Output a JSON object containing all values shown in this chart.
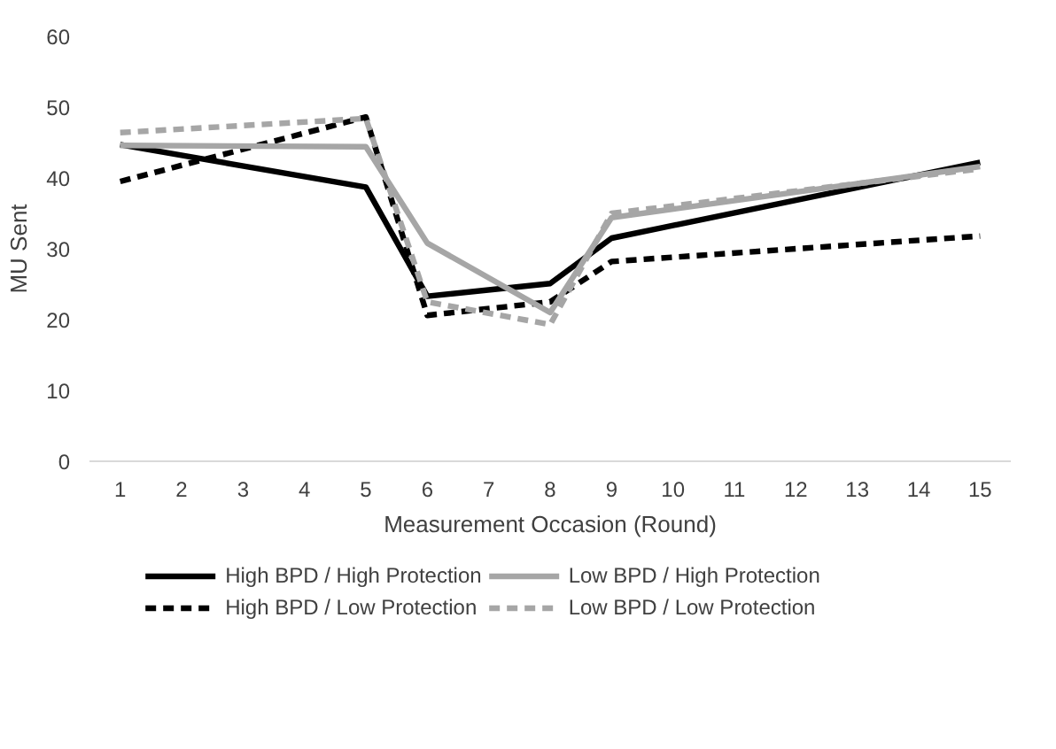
{
  "chart_data": {
    "type": "line",
    "xlabel": "Measurement Occasion (Round)",
    "ylabel": "MU Sent",
    "x": [
      1,
      5,
      6,
      8,
      9,
      15
    ],
    "xlim": [
      0.5,
      15.5
    ],
    "xticks": [
      1,
      2,
      3,
      4,
      5,
      6,
      7,
      8,
      9,
      10,
      11,
      12,
      13,
      14,
      15
    ],
    "ylim": [
      0,
      60
    ],
    "yticks": [
      0,
      10,
      20,
      30,
      40,
      50,
      60
    ],
    "grid": false,
    "legend": "bottom",
    "marker": "none",
    "series": [
      {
        "name": "High BPD / High Protection",
        "color": "#000000",
        "line_style": "solid",
        "values": [
          44.7,
          38.7,
          23.3,
          25.1,
          31.5,
          42.2
        ]
      },
      {
        "name": "High BPD / Low Protection",
        "color": "#000000",
        "line_style": "dashed",
        "values": [
          39.5,
          48.6,
          20.6,
          22.5,
          28.2,
          31.8
        ]
      },
      {
        "name": "Low BPD / High Protection",
        "color": "#a6a6a6",
        "line_style": "solid",
        "values": [
          44.6,
          44.4,
          30.8,
          21.0,
          34.4,
          41.6
        ]
      },
      {
        "name": "Low BPD / Low Protection",
        "color": "#a6a6a6",
        "line_style": "dashed",
        "values": [
          46.4,
          48.4,
          22.5,
          19.3,
          35.0,
          41.3
        ]
      }
    ]
  }
}
